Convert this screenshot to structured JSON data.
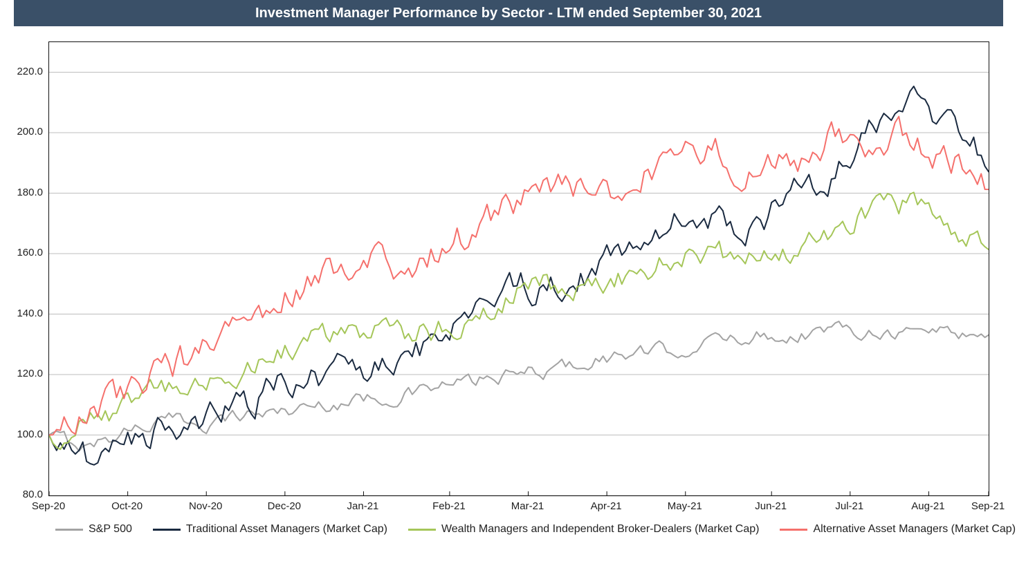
{
  "title_bar": {
    "text": "Investment Manager Performance by Sector - LTM ended September 30, 2021",
    "background": "#3a5068",
    "text_color": "#ffffff",
    "font_size": 20,
    "font_weight": 700
  },
  "chart": {
    "type": "line",
    "background": "#ffffff",
    "grid_color": "#bdbdbd",
    "border_color": "#111111",
    "line_width": 2,
    "y_axis": {
      "min": 80,
      "max": 230,
      "tick_step": 20,
      "tick_format": "0.0",
      "tick_values": [
        80,
        100,
        120,
        140,
        160,
        180,
        200,
        220
      ],
      "tick_labels": [
        "80.0",
        "100.0",
        "120.0",
        "140.0",
        "160.0",
        "180.0",
        "200.0",
        "220.0"
      ],
      "font_size": 15,
      "font_color": "#222222"
    },
    "x_axis": {
      "tick_indices": [
        0,
        21,
        42,
        63,
        84,
        107,
        128,
        149,
        170,
        193,
        214,
        235,
        251
      ],
      "tick_labels": [
        "Sep-20",
        "Oct-20",
        "Nov-20",
        "Dec-20",
        "Jan-21",
        "Feb-21",
        "Mar-21",
        "Apr-21",
        "May-21",
        "Jun-21",
        "Jul-21",
        "Aug-21",
        "Sep-21"
      ],
      "font_size": 15,
      "font_color": "#222222"
    },
    "n_points_per_series": 252,
    "legend": {
      "font_size": 16,
      "items": [
        {
          "key": "sp500",
          "label": "S&P 500",
          "color": "#a3a3a3"
        },
        {
          "key": "trad",
          "label": "Traditional Asset Managers (Market Cap)",
          "color": "#1a2a40"
        },
        {
          "key": "wealth",
          "label": "Wealth Managers and Independent Broker-Dealers (Market Cap)",
          "color": "#a5c659"
        },
        {
          "key": "alt",
          "label": "Alternative Asset Managers (Market Cap)",
          "color": "#f5706c"
        }
      ]
    },
    "series_targets": {
      "sp500": {
        "color": "#a3a3a3",
        "targets": [
          100,
          96,
          102,
          105,
          104,
          107,
          108,
          110,
          112,
          113,
          116,
          118,
          120,
          122,
          125,
          127,
          128,
          131,
          133,
          133,
          135,
          135,
          134,
          135,
          132
        ],
        "volatility": 2.0
      },
      "trad": {
        "color": "#1a2a40",
        "targets": [
          100,
          92,
          97,
          102,
          105,
          110,
          117,
          120,
          121,
          126,
          132,
          145,
          150,
          149,
          155,
          165,
          170,
          172,
          167,
          180,
          185,
          200,
          208,
          206,
          192
        ],
        "volatility": 4.2
      },
      "wealth": {
        "color": "#a5c659",
        "targets": [
          100,
          104,
          110,
          116,
          118,
          122,
          128,
          134,
          134,
          134,
          135,
          140,
          148,
          150,
          150,
          152,
          160,
          160,
          157,
          160,
          167,
          173,
          176,
          170,
          162
        ],
        "volatility": 3.5
      },
      "alt": {
        "color": "#f5706c",
        "targets": [
          100,
          108,
          113,
          122,
          128,
          137,
          145,
          155,
          158,
          154,
          160,
          170,
          178,
          182,
          180,
          183,
          194,
          195,
          186,
          190,
          198,
          195,
          200,
          190,
          185
        ],
        "volatility": 4.5
      }
    }
  }
}
